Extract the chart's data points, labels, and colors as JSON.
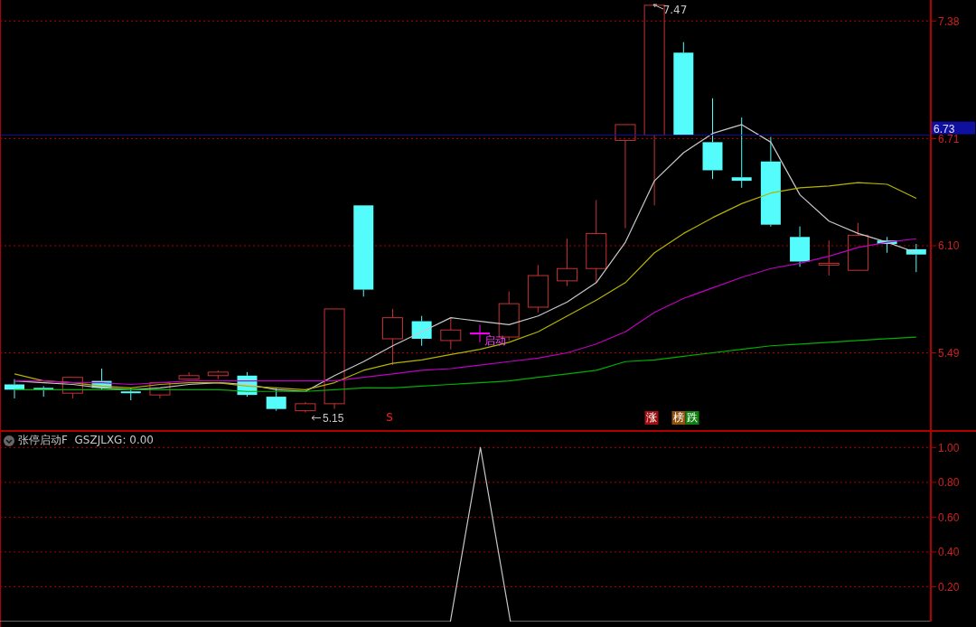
{
  "chart_data": [
    {
      "type": "candlestick",
      "categories": [
        null,
        null,
        null,
        null,
        null,
        null,
        null,
        null,
        null,
        null,
        null,
        null,
        null,
        null,
        null,
        null,
        null,
        null,
        null,
        null,
        null,
        null,
        null,
        null,
        null,
        null,
        null,
        null,
        null,
        null,
        null,
        null
      ],
      "ohlc": [
        [
          5.31,
          5.34,
          5.23,
          5.28
        ],
        [
          5.29,
          5.3,
          5.24,
          5.28
        ],
        [
          5.26,
          5.35,
          5.23,
          5.35
        ],
        [
          5.33,
          5.4,
          5.28,
          5.29
        ],
        [
          5.27,
          5.29,
          5.22,
          5.26
        ],
        [
          5.25,
          5.32,
          5.23,
          5.32
        ],
        [
          5.34,
          5.38,
          5.34,
          5.36
        ],
        [
          5.36,
          5.39,
          5.34,
          5.38
        ],
        [
          5.36,
          5.38,
          5.24,
          5.25
        ],
        [
          5.24,
          5.29,
          5.16,
          5.17
        ],
        [
          5.16,
          5.21,
          5.15,
          5.2
        ],
        [
          5.2,
          5.74,
          5.17,
          5.74
        ],
        [
          6.33,
          6.33,
          5.81,
          5.85
        ],
        [
          5.57,
          5.74,
          5.42,
          5.69
        ],
        [
          5.67,
          5.7,
          5.53,
          5.57
        ],
        [
          5.56,
          5.69,
          5.51,
          5.62
        ],
        [
          5.6,
          5.65,
          5.55,
          5.6
        ],
        [
          5.58,
          5.84,
          5.56,
          5.77
        ],
        [
          5.75,
          5.99,
          5.72,
          5.93
        ],
        [
          5.9,
          6.14,
          5.87,
          5.97
        ],
        [
          5.97,
          6.36,
          5.89,
          6.17
        ],
        [
          6.7,
          6.79,
          6.2,
          6.79
        ],
        [
          6.73,
          7.47,
          6.33,
          7.47
        ],
        [
          7.2,
          7.26,
          6.73,
          6.73
        ],
        [
          6.69,
          6.94,
          6.48,
          6.53
        ],
        [
          6.49,
          6.83,
          6.43,
          6.47
        ],
        [
          6.58,
          6.72,
          6.21,
          6.22
        ],
        [
          6.15,
          6.21,
          5.98,
          6.01
        ],
        [
          5.99,
          6.13,
          5.93,
          6.0
        ],
        [
          5.96,
          6.23,
          5.96,
          6.16
        ],
        [
          6.13,
          6.15,
          6.06,
          6.11
        ],
        [
          6.08,
          6.11,
          5.95,
          6.05
        ]
      ],
      "colors": [
        "#54fcfc",
        "#54fcfc",
        "#c83232",
        "#54fcfc",
        "#54fcfc",
        "#c83232",
        "#c83232",
        "#c83232",
        "#54fcfc",
        "#54fcfc",
        "#c83232",
        "#c83232",
        "#54fcfc",
        "#c83232",
        "#54fcfc",
        "#c83232",
        "#ff00ff",
        "#c83232",
        "#c83232",
        "#c83232",
        "#c83232",
        "#c83232",
        "#c83232",
        "#54fcfc",
        "#54fcfc",
        "#54fcfc",
        "#54fcfc",
        "#54fcfc",
        "#c83232",
        "#c83232",
        "#54fcfc",
        "#54fcfc"
      ],
      "series": [
        {
          "type": "line",
          "color": "#c8c8c8",
          "values": [
            5.33,
            5.32,
            5.31,
            5.29,
            5.28,
            5.29,
            5.31,
            5.32,
            5.31,
            5.28,
            5.27,
            5.36,
            5.44,
            5.53,
            5.61,
            5.69,
            5.67,
            5.65,
            5.7,
            5.78,
            5.89,
            6.12,
            6.47,
            6.63,
            6.74,
            6.79,
            6.69,
            6.39,
            6.24,
            6.17,
            6.12,
            6.06
          ]
        },
        {
          "type": "line",
          "color": "#b4b400",
          "values": [
            5.37,
            5.33,
            5.32,
            5.3,
            5.29,
            5.31,
            5.32,
            5.32,
            5.3,
            5.29,
            5.28,
            5.32,
            5.39,
            5.43,
            5.45,
            5.48,
            5.51,
            5.55,
            5.61,
            5.7,
            5.79,
            5.89,
            6.06,
            6.17,
            6.26,
            6.34,
            6.4,
            6.43,
            6.44,
            6.46,
            6.45,
            6.37
          ]
        },
        {
          "type": "line",
          "color": "#c000c0",
          "values": [
            5.33,
            5.33,
            5.32,
            5.32,
            5.31,
            5.32,
            5.33,
            5.33,
            5.33,
            5.33,
            5.33,
            5.33,
            5.35,
            5.37,
            5.39,
            5.4,
            5.42,
            5.44,
            5.46,
            5.49,
            5.54,
            5.61,
            5.72,
            5.8,
            5.86,
            5.92,
            5.97,
            6.0,
            6.04,
            6.09,
            6.12,
            6.14
          ]
        },
        {
          "type": "line",
          "color": "#00b000",
          "values": [
            5.28,
            5.28,
            5.28,
            5.28,
            5.28,
            5.28,
            5.28,
            5.28,
            5.27,
            5.27,
            5.27,
            5.28,
            5.29,
            5.29,
            5.3,
            5.31,
            5.32,
            5.33,
            5.35,
            5.37,
            5.39,
            5.44,
            5.45,
            5.47,
            5.49,
            5.51,
            5.53,
            5.54,
            5.55,
            5.56,
            5.57,
            5.58
          ]
        }
      ],
      "ylim": [
        5.05,
        7.5
      ],
      "yticks": [
        5.49,
        {
          "value": 6.1,
          "label": "6.10"
        },
        6.71,
        7.38
      ],
      "grid": "y",
      "ref_lines": [
        {
          "axis": "y",
          "value": 6.73,
          "label": "6.73",
          "color": "#1010a0"
        }
      ],
      "annotations": [
        "7.47",
        {
          "text": "5.15",
          "y": 5.15
        },
        "S",
        "启动",
        "涨",
        "榜",
        "跌"
      ]
    },
    {
      "type": "line",
      "title": "张停启动F  GSZJLXG: 0.00",
      "categories": [
        null,
        null,
        null,
        null,
        null,
        null,
        null,
        null,
        null,
        null,
        null,
        null,
        null,
        null,
        null,
        null,
        null,
        null,
        null,
        null,
        null,
        null,
        null,
        null,
        null,
        null,
        null,
        null,
        null,
        null,
        null,
        null
      ],
      "series": [
        {
          "color": "#c8c8c8",
          "values": [
            0,
            0,
            0,
            0,
            0,
            0,
            0,
            0,
            0,
            0,
            0,
            0,
            0,
            0,
            0,
            0,
            1,
            0,
            0,
            0,
            0,
            0,
            0,
            0,
            0,
            0,
            0,
            0,
            0,
            0,
            0,
            0
          ]
        }
      ],
      "ylim": [
        0,
        1.09
      ],
      "yticks": [
        {
          "value": 0.2,
          "label": "0.20"
        },
        {
          "value": 0.4,
          "label": "0.40"
        },
        {
          "value": 0.6,
          "label": "0.60"
        },
        {
          "value": 0.8,
          "label": "0.80"
        },
        {
          "value": 1,
          "label": "1.00"
        }
      ],
      "grid": "y"
    }
  ]
}
